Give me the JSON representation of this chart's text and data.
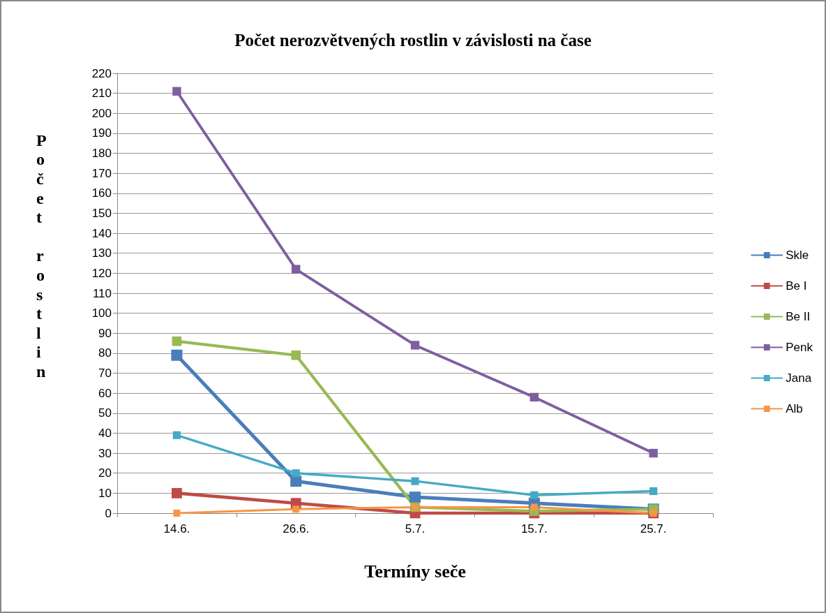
{
  "chart_data": {
    "type": "line",
    "title": "Počet nerozvětvených rostlin v závislosti na čase",
    "xlabel": "Termíny seče",
    "ylabel": "Počet rostlin",
    "categories": [
      "14.6.",
      "26.6.",
      "5.7.",
      "15.7.",
      "25.7."
    ],
    "series": [
      {
        "name": "Skle",
        "color": "#4a7ebb",
        "values": [
          79,
          16,
          8,
          5,
          2
        ]
      },
      {
        "name": "Be I",
        "color": "#be4b48",
        "values": [
          10,
          5,
          0,
          0,
          0
        ]
      },
      {
        "name": "Be II",
        "color": "#98b954",
        "values": [
          86,
          79,
          3,
          1,
          2
        ]
      },
      {
        "name": "Penk",
        "color": "#7d5fa0",
        "values": [
          211,
          122,
          84,
          58,
          30
        ]
      },
      {
        "name": "Jana",
        "color": "#46aac5",
        "values": [
          39,
          20,
          16,
          9,
          11
        ]
      },
      {
        "name": "Alb",
        "color": "#f79646",
        "values": [
          0,
          2,
          3,
          3,
          0
        ]
      }
    ],
    "ylim": [
      0,
      220
    ],
    "yticks": [
      0,
      10,
      20,
      30,
      40,
      50,
      60,
      70,
      80,
      90,
      100,
      110,
      120,
      130,
      140,
      150,
      160,
      170,
      180,
      190,
      200,
      210,
      220
    ],
    "grid": "y",
    "legend": "right",
    "marker": "square",
    "line_style": "solid"
  }
}
